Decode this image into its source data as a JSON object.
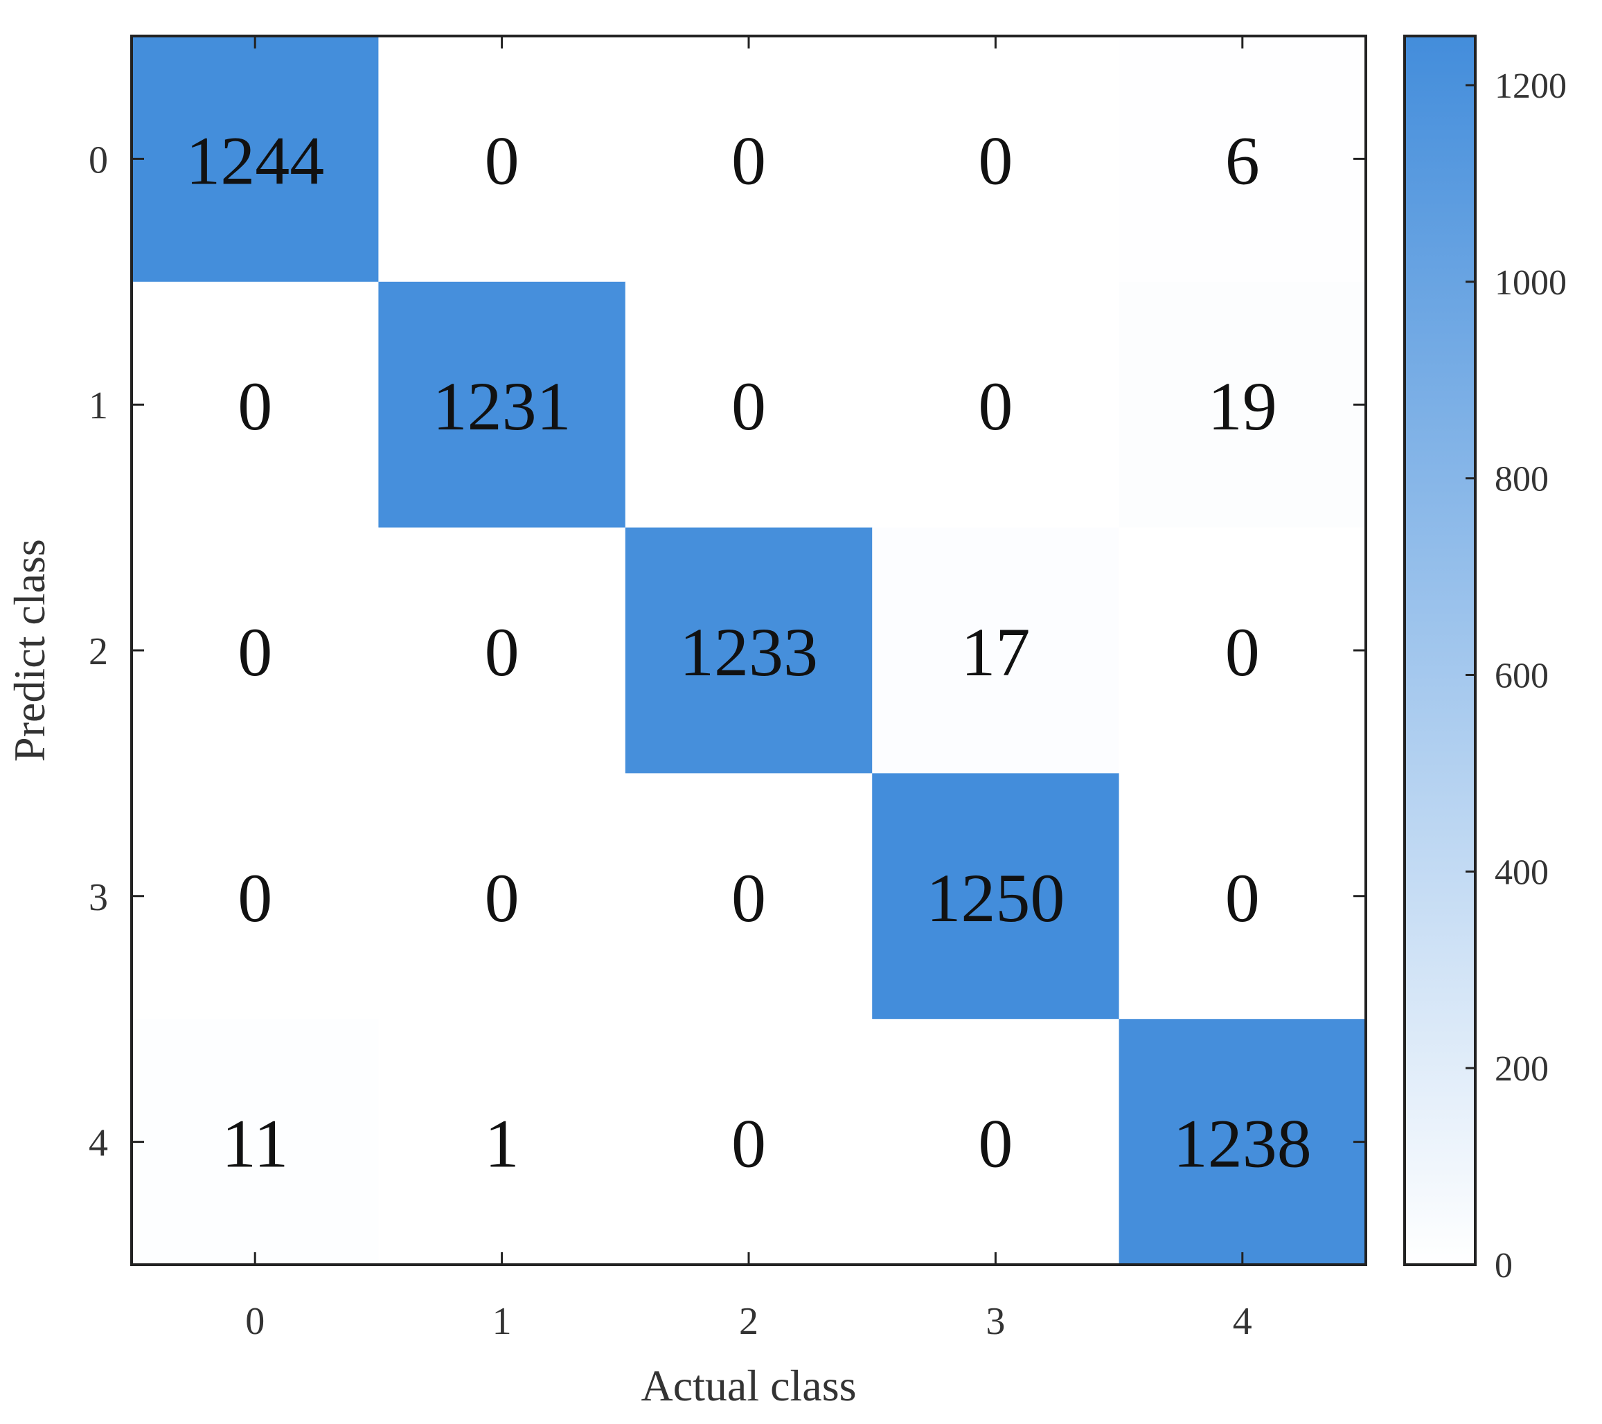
{
  "chart_data": {
    "type": "heatmap",
    "title": "",
    "xlabel": "Actual class",
    "ylabel": "Predict class",
    "x_categories": [
      "0",
      "1",
      "2",
      "3",
      "4"
    ],
    "y_categories": [
      "0",
      "1",
      "2",
      "3",
      "4"
    ],
    "matrix": [
      [
        1244,
        0,
        0,
        0,
        6
      ],
      [
        0,
        1231,
        0,
        0,
        19
      ],
      [
        0,
        0,
        1233,
        17,
        0
      ],
      [
        0,
        0,
        0,
        1250,
        0
      ],
      [
        11,
        1,
        0,
        0,
        1238
      ]
    ],
    "colorbar": {
      "range": [
        0,
        1250
      ],
      "ticks": [
        0,
        200,
        400,
        600,
        800,
        1000,
        1200
      ],
      "tick_labels": [
        "0",
        "200",
        "400",
        "600",
        "800",
        "1000",
        "1200"
      ],
      "low_color": "#ffffff",
      "high_color": "#438ddb"
    },
    "grid": false
  }
}
